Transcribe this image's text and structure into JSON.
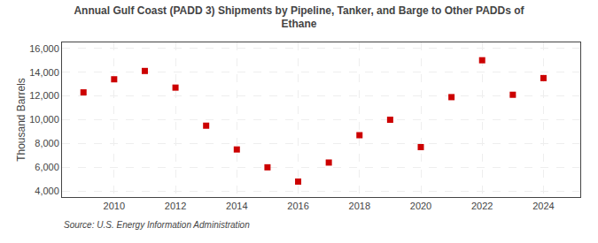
{
  "chart_data": {
    "type": "scatter",
    "title": "Annual Gulf Coast (PADD 3) Shipments by Pipeline, Tanker, and Barge to Other PADDs of\nEthane",
    "ylabel": "Thousand Barrels",
    "annotations": [
      "Source: U.S. Energy Information Administration"
    ],
    "x": [
      2009,
      2010,
      2011,
      2012,
      2013,
      2014,
      2015,
      2016,
      2017,
      2018,
      2019,
      2020,
      2021,
      2022,
      2023,
      2024
    ],
    "values": [
      12300,
      13400,
      14100,
      12700,
      9500,
      7500,
      6000,
      4800,
      6400,
      8700,
      10000,
      7700,
      11900,
      15000,
      12100,
      13500
    ],
    "color": "#CC0000",
    "marker": "square",
    "xlim": [
      2008.3,
      2025.2
    ],
    "xticks": [
      2010,
      2012,
      2014,
      2016,
      2018,
      2020,
      2022,
      2024
    ],
    "ylim": [
      3500,
      16500
    ],
    "yticks": [
      {
        "value": 4000,
        "label": "4,000"
      },
      {
        "value": 6000,
        "label": "6,000"
      },
      {
        "value": 8000,
        "label": "8,000"
      },
      {
        "value": 10000,
        "label": "10,000"
      },
      {
        "value": 12000,
        "label": "12,000"
      },
      {
        "value": 14000,
        "label": "14,000"
      },
      {
        "value": 16000,
        "label": "16,000"
      }
    ],
    "grid": true
  }
}
